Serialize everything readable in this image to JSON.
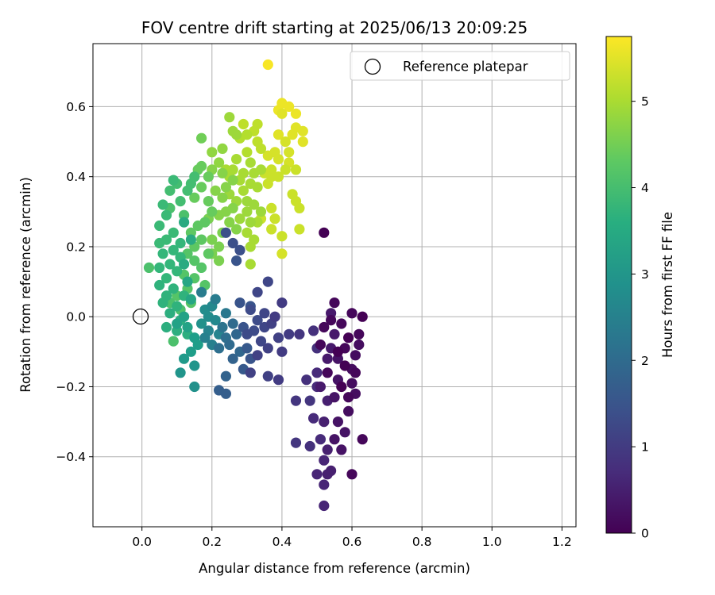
{
  "chart_data": {
    "type": "scatter",
    "title": "FOV centre drift starting at 2025/06/13 20:09:25",
    "xlabel": "Angular distance from reference (arcmin)",
    "ylabel": "Rotation from reference (arcmin)",
    "xlim": [
      -0.14,
      1.24
    ],
    "ylim": [
      -0.6,
      0.78
    ],
    "xticks": [
      0.0,
      0.2,
      0.4,
      0.6,
      0.8,
      1.0,
      1.2
    ],
    "xtick_labels": [
      "0.0",
      "0.2",
      "0.4",
      "0.6",
      "0.8",
      "1.0",
      "1.2"
    ],
    "yticks": [
      -0.4,
      -0.2,
      0.0,
      0.2,
      0.4,
      0.6
    ],
    "ytick_labels": [
      "−0.4",
      "−0.2",
      "0.0",
      "0.2",
      "0.4",
      "0.6"
    ],
    "grid": true,
    "legend": {
      "position": "top-right",
      "entries": [
        "Reference platepar"
      ]
    },
    "reference_point": {
      "x": 0.0,
      "y": 0.0,
      "label": "Reference platepar"
    },
    "colorbar": {
      "label": "Hours from first FF file",
      "colormap": "viridis",
      "range": [
        0,
        5.75
      ],
      "ticks": [
        0,
        1,
        2,
        3,
        4,
        5
      ],
      "tick_labels": [
        "0",
        "1",
        "2",
        "3",
        "4",
        "5"
      ]
    },
    "points": [
      [
        0.36,
        0.72,
        5.7
      ],
      [
        0.4,
        0.61,
        5.6
      ],
      [
        0.42,
        0.6,
        5.6
      ],
      [
        0.39,
        0.59,
        5.6
      ],
      [
        0.44,
        0.58,
        5.6
      ],
      [
        0.4,
        0.58,
        5.5
      ],
      [
        0.44,
        0.54,
        5.5
      ],
      [
        0.46,
        0.53,
        5.5
      ],
      [
        0.43,
        0.52,
        5.5
      ],
      [
        0.39,
        0.52,
        5.5
      ],
      [
        0.46,
        0.5,
        5.5
      ],
      [
        0.41,
        0.5,
        5.4
      ],
      [
        0.42,
        0.47,
        5.4
      ],
      [
        0.38,
        0.47,
        5.4
      ],
      [
        0.36,
        0.46,
        5.4
      ],
      [
        0.39,
        0.45,
        5.4
      ],
      [
        0.42,
        0.44,
        5.4
      ],
      [
        0.37,
        0.42,
        5.3
      ],
      [
        0.41,
        0.42,
        5.3
      ],
      [
        0.44,
        0.42,
        5.3
      ],
      [
        0.35,
        0.41,
        5.3
      ],
      [
        0.37,
        0.4,
        5.3
      ],
      [
        0.39,
        0.4,
        5.3
      ],
      [
        0.36,
        0.38,
        5.3
      ],
      [
        0.43,
        0.35,
        5.3
      ],
      [
        0.44,
        0.33,
        5.3
      ],
      [
        0.45,
        0.31,
        5.3
      ],
      [
        0.37,
        0.31,
        5.3
      ],
      [
        0.38,
        0.28,
        5.3
      ],
      [
        0.34,
        0.28,
        5.3
      ],
      [
        0.37,
        0.25,
        5.3
      ],
      [
        0.45,
        0.25,
        5.3
      ],
      [
        0.4,
        0.23,
        5.3
      ],
      [
        0.4,
        0.18,
        5.4
      ],
      [
        0.29,
        0.55,
        5.2
      ],
      [
        0.33,
        0.55,
        5.2
      ],
      [
        0.32,
        0.53,
        5.2
      ],
      [
        0.3,
        0.52,
        5.1
      ],
      [
        0.28,
        0.51,
        5.1
      ],
      [
        0.33,
        0.5,
        5.2
      ],
      [
        0.34,
        0.48,
        5.2
      ],
      [
        0.3,
        0.47,
        5.1
      ],
      [
        0.27,
        0.45,
        5.0
      ],
      [
        0.31,
        0.44,
        5.0
      ],
      [
        0.34,
        0.42,
        5.0
      ],
      [
        0.32,
        0.41,
        5.0
      ],
      [
        0.29,
        0.41,
        5.0
      ],
      [
        0.26,
        0.42,
        5.0
      ],
      [
        0.24,
        0.42,
        5.0
      ],
      [
        0.25,
        0.4,
        5.0
      ],
      [
        0.28,
        0.39,
        5.0
      ],
      [
        0.31,
        0.38,
        5.0
      ],
      [
        0.33,
        0.37,
        5.0
      ],
      [
        0.29,
        0.36,
        5.0
      ],
      [
        0.25,
        0.35,
        4.9
      ],
      [
        0.27,
        0.33,
        4.9
      ],
      [
        0.3,
        0.33,
        4.9
      ],
      [
        0.32,
        0.32,
        4.9
      ],
      [
        0.34,
        0.3,
        4.9
      ],
      [
        0.3,
        0.3,
        4.9
      ],
      [
        0.28,
        0.28,
        4.9
      ],
      [
        0.31,
        0.27,
        4.9
      ],
      [
        0.33,
        0.27,
        5.0
      ],
      [
        0.3,
        0.24,
        5.0
      ],
      [
        0.32,
        0.22,
        5.0
      ],
      [
        0.31,
        0.2,
        5.0
      ],
      [
        0.31,
        0.15,
        5.0
      ],
      [
        0.25,
        0.57,
        4.9
      ],
      [
        0.26,
        0.53,
        4.9
      ],
      [
        0.27,
        0.52,
        4.9
      ],
      [
        0.23,
        0.48,
        4.8
      ],
      [
        0.2,
        0.47,
        4.8
      ],
      [
        0.22,
        0.44,
        4.8
      ],
      [
        0.2,
        0.42,
        4.7
      ],
      [
        0.23,
        0.41,
        4.7
      ],
      [
        0.26,
        0.39,
        4.7
      ],
      [
        0.24,
        0.37,
        4.7
      ],
      [
        0.21,
        0.36,
        4.7
      ],
      [
        0.23,
        0.34,
        4.7
      ],
      [
        0.26,
        0.31,
        4.7
      ],
      [
        0.24,
        0.3,
        4.7
      ],
      [
        0.22,
        0.29,
        4.7
      ],
      [
        0.25,
        0.27,
        4.7
      ],
      [
        0.27,
        0.25,
        4.7
      ],
      [
        0.23,
        0.24,
        4.6
      ],
      [
        0.2,
        0.22,
        4.6
      ],
      [
        0.22,
        0.2,
        4.6
      ],
      [
        0.2,
        0.18,
        4.6
      ],
      [
        0.22,
        0.16,
        4.6
      ],
      [
        0.19,
        0.28,
        4.6
      ],
      [
        0.17,
        0.51,
        4.5
      ],
      [
        0.17,
        0.43,
        4.4
      ],
      [
        0.16,
        0.42,
        4.4
      ],
      [
        0.19,
        0.4,
        4.4
      ],
      [
        0.17,
        0.37,
        4.4
      ],
      [
        0.15,
        0.34,
        4.4
      ],
      [
        0.19,
        0.33,
        4.4
      ],
      [
        0.2,
        0.3,
        4.4
      ],
      [
        0.18,
        0.27,
        4.3
      ],
      [
        0.16,
        0.26,
        4.3
      ],
      [
        0.14,
        0.24,
        4.3
      ],
      [
        0.17,
        0.22,
        4.3
      ],
      [
        0.15,
        0.2,
        4.3
      ],
      [
        0.19,
        0.18,
        4.3
      ],
      [
        0.13,
        0.18,
        4.2
      ],
      [
        0.15,
        0.16,
        4.2
      ],
      [
        0.17,
        0.14,
        4.2
      ],
      [
        0.12,
        0.12,
        4.2
      ],
      [
        0.15,
        0.11,
        4.2
      ],
      [
        0.18,
        0.09,
        4.2
      ],
      [
        0.13,
        0.08,
        4.2
      ],
      [
        0.1,
        0.06,
        4.2
      ],
      [
        0.14,
        0.04,
        4.2
      ],
      [
        0.11,
        0.02,
        4.1
      ],
      [
        0.08,
        0.04,
        4.1
      ],
      [
        0.02,
        0.14,
        4.1
      ],
      [
        0.09,
        -0.07,
        4.1
      ],
      [
        0.12,
        0.29,
        4.1
      ],
      [
        0.08,
        0.31,
        4.1
      ],
      [
        0.11,
        0.33,
        4.0
      ],
      [
        0.13,
        0.36,
        4.0
      ],
      [
        0.1,
        0.38,
        4.0
      ],
      [
        0.08,
        0.36,
        4.0
      ],
      [
        0.14,
        0.38,
        4.0
      ],
      [
        0.15,
        0.4,
        4.0
      ],
      [
        0.09,
        0.39,
        3.9
      ],
      [
        0.06,
        0.32,
        3.9
      ],
      [
        0.07,
        0.29,
        3.9
      ],
      [
        0.05,
        0.26,
        3.9
      ],
      [
        0.09,
        0.24,
        3.9
      ],
      [
        0.07,
        0.22,
        3.9
      ],
      [
        0.05,
        0.21,
        3.9
      ],
      [
        0.11,
        0.21,
        3.8
      ],
      [
        0.09,
        0.19,
        3.8
      ],
      [
        0.06,
        0.18,
        3.8
      ],
      [
        0.11,
        0.17,
        3.8
      ],
      [
        0.08,
        0.15,
        3.8
      ],
      [
        0.05,
        0.14,
        3.8
      ],
      [
        0.1,
        0.13,
        3.8
      ],
      [
        0.07,
        0.11,
        3.8
      ],
      [
        0.05,
        0.09,
        3.7
      ],
      [
        0.09,
        0.08,
        3.7
      ],
      [
        0.07,
        0.06,
        3.7
      ],
      [
        0.12,
        0.06,
        3.7
      ],
      [
        0.06,
        0.04,
        3.7
      ],
      [
        0.1,
        0.03,
        3.7
      ],
      [
        0.08,
        0.01,
        3.6
      ],
      [
        0.11,
        -0.01,
        3.6
      ],
      [
        0.07,
        -0.03,
        3.6
      ],
      [
        0.1,
        -0.04,
        3.6
      ],
      [
        0.13,
        -0.05,
        3.6
      ],
      [
        0.12,
        0.27,
        3.5
      ],
      [
        0.14,
        0.22,
        3.5
      ],
      [
        0.12,
        0.15,
        3.5
      ],
      [
        0.13,
        0.1,
        3.4
      ],
      [
        0.14,
        0.05,
        3.4
      ],
      [
        0.12,
        0.0,
        3.3
      ],
      [
        0.1,
        -0.02,
        3.3
      ],
      [
        0.13,
        -0.03,
        3.3
      ],
      [
        0.15,
        -0.06,
        3.2
      ],
      [
        0.16,
        -0.08,
        3.2
      ],
      [
        0.14,
        -0.1,
        3.2
      ],
      [
        0.12,
        -0.12,
        3.1
      ],
      [
        0.15,
        -0.14,
        3.0
      ],
      [
        0.11,
        -0.16,
        3.0
      ],
      [
        0.15,
        -0.2,
        2.9
      ],
      [
        0.17,
        -0.02,
        2.9
      ],
      [
        0.19,
        0.0,
        2.8
      ],
      [
        0.18,
        0.02,
        2.8
      ],
      [
        0.2,
        0.03,
        2.7
      ],
      [
        0.21,
        -0.01,
        2.7
      ],
      [
        0.19,
        -0.04,
        2.6
      ],
      [
        0.22,
        -0.05,
        2.6
      ],
      [
        0.2,
        -0.08,
        2.5
      ],
      [
        0.18,
        -0.06,
        2.5
      ],
      [
        0.21,
        0.05,
        2.4
      ],
      [
        0.17,
        0.07,
        2.4
      ],
      [
        0.24,
        0.01,
        2.3
      ],
      [
        0.23,
        -0.03,
        2.2
      ],
      [
        0.24,
        -0.06,
        2.1
      ],
      [
        0.22,
        -0.09,
        2.1
      ],
      [
        0.25,
        -0.08,
        2.0
      ],
      [
        0.26,
        -0.02,
        2.0
      ],
      [
        0.27,
        -0.05,
        1.9
      ],
      [
        0.28,
        -0.1,
        1.9
      ],
      [
        0.26,
        -0.12,
        1.8
      ],
      [
        0.24,
        -0.17,
        1.8
      ],
      [
        0.22,
        -0.21,
        1.7
      ],
      [
        0.24,
        -0.22,
        1.7
      ],
      [
        0.29,
        -0.15,
        1.6
      ],
      [
        0.3,
        -0.09,
        1.6
      ],
      [
        0.31,
        -0.12,
        1.5
      ],
      [
        0.29,
        -0.03,
        1.5
      ],
      [
        0.31,
        0.03,
        1.5
      ],
      [
        0.28,
        0.04,
        1.5
      ],
      [
        0.27,
        0.16,
        1.5
      ],
      [
        0.26,
        0.21,
        1.4
      ],
      [
        0.24,
        0.24,
        1.4
      ],
      [
        0.28,
        0.19,
        1.4
      ],
      [
        0.31,
        0.02,
        1.3
      ],
      [
        0.33,
        -0.01,
        1.3
      ],
      [
        0.32,
        -0.04,
        1.3
      ],
      [
        0.3,
        -0.05,
        1.3
      ],
      [
        0.34,
        -0.07,
        1.2
      ],
      [
        0.35,
        -0.03,
        1.2
      ],
      [
        0.33,
        0.07,
        1.2
      ],
      [
        0.36,
        0.1,
        1.2
      ],
      [
        0.35,
        0.01,
        1.2
      ],
      [
        0.37,
        -0.02,
        1.1
      ],
      [
        0.39,
        -0.06,
        1.1
      ],
      [
        0.36,
        -0.09,
        1.1
      ],
      [
        0.33,
        -0.11,
        1.1
      ],
      [
        0.31,
        -0.16,
        1.1
      ],
      [
        0.36,
        -0.17,
        1.1
      ],
      [
        0.39,
        -0.18,
        1.0
      ],
      [
        0.4,
        -0.1,
        1.0
      ],
      [
        0.38,
        0.0,
        1.0
      ],
      [
        0.4,
        0.04,
        1.0
      ],
      [
        0.42,
        -0.05,
        1.0
      ],
      [
        0.45,
        -0.05,
        0.9
      ],
      [
        0.44,
        -0.24,
        0.9
      ],
      [
        0.44,
        -0.36,
        0.9
      ],
      [
        0.48,
        -0.24,
        0.9
      ],
      [
        0.48,
        -0.37,
        0.8
      ],
      [
        0.47,
        -0.18,
        0.8
      ],
      [
        0.49,
        -0.04,
        0.8
      ],
      [
        0.5,
        -0.09,
        0.8
      ],
      [
        0.5,
        -0.16,
        0.7
      ],
      [
        0.5,
        -0.2,
        0.7
      ],
      [
        0.49,
        -0.29,
        0.7
      ],
      [
        0.51,
        -0.35,
        0.7
      ],
      [
        0.5,
        -0.45,
        0.6
      ],
      [
        0.52,
        -0.41,
        0.6
      ],
      [
        0.52,
        -0.48,
        0.6
      ],
      [
        0.52,
        -0.54,
        0.6
      ],
      [
        0.53,
        -0.45,
        0.5
      ],
      [
        0.54,
        -0.44,
        0.5
      ],
      [
        0.53,
        -0.38,
        0.5
      ],
      [
        0.52,
        -0.3,
        0.5
      ],
      [
        0.53,
        -0.24,
        0.5
      ],
      [
        0.51,
        -0.2,
        0.4
      ],
      [
        0.53,
        -0.12,
        0.4
      ],
      [
        0.54,
        -0.09,
        0.4
      ],
      [
        0.55,
        -0.05,
        0.4
      ],
      [
        0.54,
        0.01,
        0.4
      ],
      [
        0.56,
        -0.12,
        0.3
      ],
      [
        0.56,
        -0.18,
        0.3
      ],
      [
        0.55,
        -0.23,
        0.3
      ],
      [
        0.56,
        -0.3,
        0.3
      ],
      [
        0.55,
        -0.35,
        0.3
      ],
      [
        0.57,
        -0.38,
        0.3
      ],
      [
        0.58,
        -0.33,
        0.3
      ],
      [
        0.59,
        -0.27,
        0.2
      ],
      [
        0.6,
        -0.19,
        0.2
      ],
      [
        0.61,
        -0.22,
        0.2
      ],
      [
        0.6,
        -0.15,
        0.2
      ],
      [
        0.61,
        -0.11,
        0.2
      ],
      [
        0.62,
        -0.08,
        0.2
      ],
      [
        0.62,
        -0.05,
        0.1
      ],
      [
        0.6,
        0.01,
        0.1
      ],
      [
        0.58,
        -0.09,
        0.1
      ],
      [
        0.57,
        -0.02,
        0.1
      ],
      [
        0.55,
        0.04,
        0.1
      ],
      [
        0.54,
        -0.01,
        0.1
      ],
      [
        0.52,
        -0.03,
        0.1
      ],
      [
        0.51,
        -0.08,
        0.1
      ],
      [
        0.53,
        -0.16,
        0.1
      ],
      [
        0.59,
        -0.23,
        0.1
      ],
      [
        0.61,
        -0.16,
        0.1
      ],
      [
        0.63,
        -0.35,
        0.1
      ],
      [
        0.6,
        -0.45,
        0.1
      ],
      [
        0.63,
        0.0,
        0.0
      ],
      [
        0.52,
        0.24,
        0.0
      ],
      [
        0.57,
        -0.2,
        0.0
      ],
      [
        0.58,
        -0.14,
        0.0
      ],
      [
        0.59,
        -0.06,
        0.0
      ],
      [
        0.56,
        -0.1,
        0.0
      ]
    ]
  }
}
